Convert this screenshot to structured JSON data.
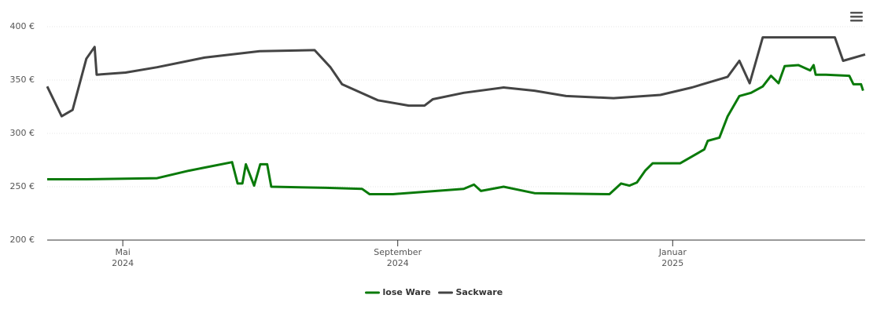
{
  "chart_data": {
    "type": "line",
    "xlim": [
      3.9,
      15.8
    ],
    "xticks": [
      {
        "value": 5,
        "label": "Mai",
        "label2": "2024"
      },
      {
        "value": 9,
        "label": "September",
        "label2": "2024"
      },
      {
        "value": 13,
        "label": "Januar",
        "label2": "2025"
      }
    ],
    "ylim": [
      200,
      400
    ],
    "yticks": [
      {
        "value": 200,
        "label": "200 €"
      },
      {
        "value": 250,
        "label": "250 €"
      },
      {
        "value": 300,
        "label": "300 €"
      },
      {
        "value": 350,
        "label": "350 €"
      },
      {
        "value": 400,
        "label": "400 €"
      }
    ],
    "grid": true,
    "legend": "bottom",
    "series": [
      {
        "name": "lose Ware",
        "color": "#0a7a0a",
        "x": [
          3.9,
          4.47,
          5.5,
          5.96,
          6.59,
          6.67,
          6.74,
          6.79,
          6.91,
          7.0,
          7.1,
          7.16,
          7.96,
          8.48,
          8.59,
          8.93,
          9.96,
          10.11,
          10.21,
          10.54,
          10.99,
          12.08,
          12.25,
          12.37,
          12.48,
          12.6,
          12.71,
          13.11,
          13.46,
          13.51,
          13.68,
          13.8,
          13.97,
          14.14,
          14.31,
          14.43,
          14.54,
          14.63,
          14.83,
          15.0,
          15.05,
          15.08,
          15.23,
          15.57,
          15.63,
          15.74,
          15.77
        ],
        "values": [
          257,
          257,
          258,
          265,
          273,
          253,
          253,
          271,
          251,
          271,
          271,
          250,
          249,
          248,
          243,
          243,
          248,
          252,
          246,
          250,
          244,
          243,
          253,
          251,
          254,
          265,
          272,
          272,
          285,
          293,
          296,
          316,
          335,
          338,
          344,
          354,
          347,
          363,
          364,
          359,
          364,
          355,
          355,
          354,
          346,
          346,
          340
        ]
      },
      {
        "name": "Sackware",
        "color": "#444444",
        "x": [
          3.9,
          4.11,
          4.27,
          4.47,
          4.59,
          4.62,
          5.04,
          5.5,
          6.19,
          6.99,
          7.79,
          8.02,
          8.19,
          8.71,
          9.16,
          9.39,
          9.51,
          9.96,
          10.54,
          10.99,
          11.45,
          12.14,
          12.82,
          13.28,
          13.8,
          13.97,
          14.12,
          14.2,
          14.31,
          15.36,
          15.48,
          15.8
        ],
        "values": [
          344,
          316,
          322,
          370,
          381,
          355,
          357,
          362,
          371,
          377,
          378,
          362,
          346,
          331,
          326,
          326,
          332,
          338,
          343,
          340,
          335,
          333,
          336,
          343,
          353,
          368,
          347,
          365,
          390,
          390,
          368,
          374
        ]
      }
    ]
  }
}
